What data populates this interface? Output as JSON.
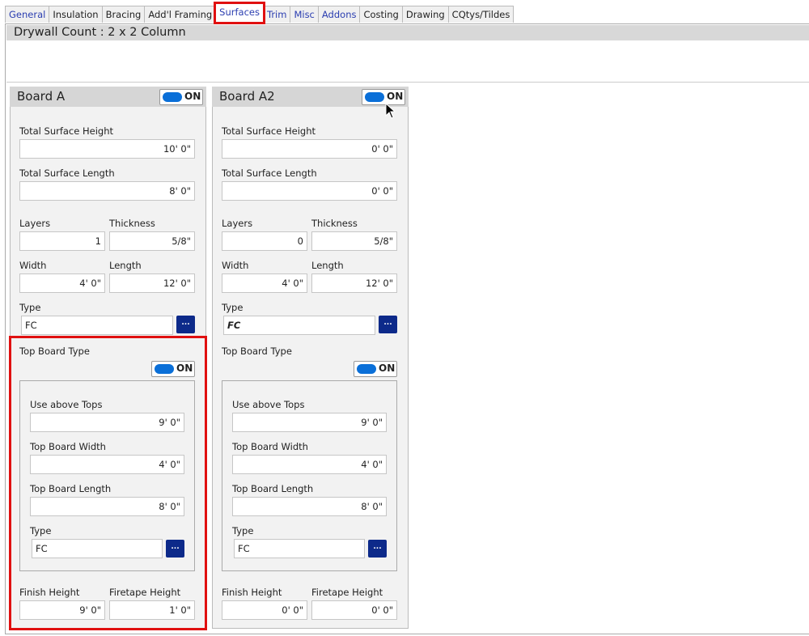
{
  "tabs": [
    {
      "label": "General",
      "style": "blue"
    },
    {
      "label": "Insulation",
      "style": ""
    },
    {
      "label": "Bracing",
      "style": ""
    },
    {
      "label": "Add'l Framing",
      "style": ""
    },
    {
      "label": "Surfaces",
      "style": "active"
    },
    {
      "label": "Trim",
      "style": "blue"
    },
    {
      "label": "Misc",
      "style": "blue"
    },
    {
      "label": "Addons",
      "style": "blue"
    },
    {
      "label": "Costing",
      "style": ""
    },
    {
      "label": "Drawing",
      "style": ""
    },
    {
      "label": "CQtys/Tildes",
      "style": ""
    }
  ],
  "header": {
    "title": "Drywall Count : 2 x 2  Column"
  },
  "labels": {
    "total_surface_height": "Total Surface Height",
    "total_surface_length": "Total Surface Length",
    "layers": "Layers",
    "thickness": "Thickness",
    "width": "Width",
    "length": "Length",
    "type": "Type",
    "top_board_type": "Top Board Type",
    "use_above_tops": "Use above Tops",
    "top_board_width": "Top Board Width",
    "top_board_length": "Top Board Length",
    "finish_height": "Finish Height",
    "firetape_height": "Firetape Height",
    "toggle_on": "ON",
    "browse": "..."
  },
  "boards": [
    {
      "title": "Board A",
      "enabled": true,
      "total_surface_height": "10' 0\"",
      "total_surface_length": "8' 0\"",
      "layers": "1",
      "thickness": "5/8\"",
      "width": "4' 0\"",
      "length": "12' 0\"",
      "type": "FC",
      "type_italic": false,
      "top_board_enabled": true,
      "use_above_tops": "9' 0\"",
      "top_board_width": "4' 0\"",
      "top_board_length": "8' 0\"",
      "top_board_type": "FC",
      "finish_height": "9' 0\"",
      "firetape_height": "1' 0\"",
      "highlighted": true
    },
    {
      "title": "Board A2",
      "enabled": true,
      "total_surface_height": "0' 0\"",
      "total_surface_length": "0' 0\"",
      "layers": "0",
      "thickness": "5/8\"",
      "width": "4' 0\"",
      "length": "12' 0\"",
      "type": "FC",
      "type_italic": true,
      "top_board_enabled": true,
      "use_above_tops": "9' 0\"",
      "top_board_width": "4' 0\"",
      "top_board_length": "8' 0\"",
      "top_board_type": "FC",
      "finish_height": "0' 0\"",
      "firetape_height": "0' 0\"",
      "highlighted": false
    }
  ],
  "colors": {
    "accent": "#0a6fd8",
    "button": "#0d2a8a",
    "highlight": "#e01010"
  }
}
